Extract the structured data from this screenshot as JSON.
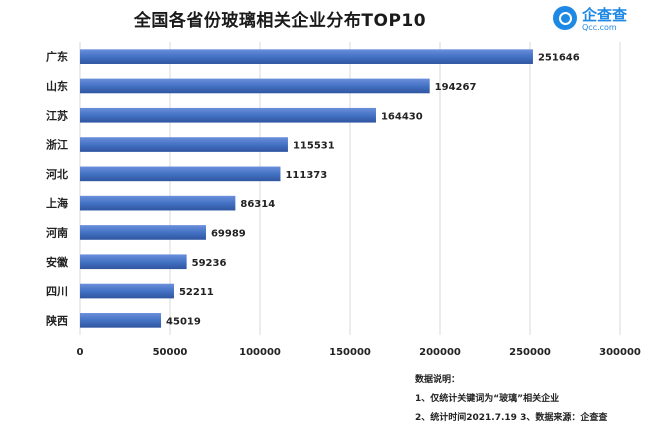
{
  "header": {
    "title": "全国各省份玻璃相关企业分布TOP10",
    "logo_name": "企查查",
    "logo_sub": "Qcc.com"
  },
  "notes": {
    "heading": "数据说明：",
    "line1": "1、仅统计关键词为“玻璃”相关企业",
    "line2": "2、统计时间2021.7.19 3、数据来源：企查查"
  },
  "chart_data": {
    "type": "bar",
    "orientation": "horizontal",
    "title": "全国各省份玻璃相关企业分布TOP10",
    "categories": [
      "广东",
      "山东",
      "江苏",
      "浙江",
      "河北",
      "上海",
      "河南",
      "安徽",
      "四川",
      "陕西"
    ],
    "values": [
      251646,
      194267,
      164430,
      115531,
      111373,
      86314,
      69989,
      59236,
      52211,
      45019
    ],
    "xlim": [
      0,
      300000
    ],
    "xticks": [
      0,
      50000,
      100000,
      150000,
      200000,
      250000,
      300000
    ],
    "grid": true,
    "bar_color": "#4472c4",
    "data_labels": true
  }
}
